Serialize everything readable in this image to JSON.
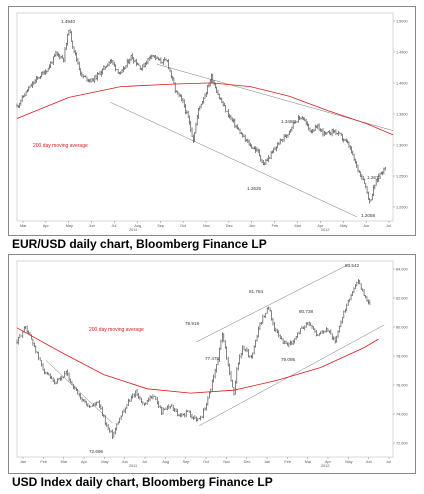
{
  "chart_data": [
    {
      "type": "line",
      "title": "EUR/USD daily chart, Bloomberg Finance LP",
      "series_price_style": "ohlc-bars",
      "moving_average_label": "200 day moving average",
      "x_tick_labels": [
        "Mar",
        "Apr",
        "May",
        "Jun",
        "Jul",
        "Aug",
        "Sep",
        "Oct",
        "Nov",
        "Dec",
        "Jan",
        "Feb",
        "Mar",
        "Apr",
        "May",
        "Jun",
        "Jul"
      ],
      "year_labels": [
        "2011",
        "2012"
      ],
      "y_tick_labels": [
        "1.5000",
        "1.4500",
        "1.4000",
        "1.3500",
        "1.3000",
        "1.2500",
        "1.2000"
      ],
      "ylim": [
        1.175,
        1.52
      ],
      "annotations": [
        "1.4940",
        "1.3486",
        "1.2625",
        "1.2670",
        "1.2058"
      ],
      "price_path": [
        [
          0,
          1.365
        ],
        [
          8,
          1.392
        ],
        [
          16,
          1.412
        ],
        [
          24,
          1.428
        ],
        [
          30,
          1.452
        ],
        [
          36,
          1.445
        ],
        [
          40,
          1.494
        ],
        [
          44,
          1.458
        ],
        [
          50,
          1.415
        ],
        [
          58,
          1.408
        ],
        [
          66,
          1.425
        ],
        [
          72,
          1.442
        ],
        [
          80,
          1.418
        ],
        [
          88,
          1.448
        ],
        [
          96,
          1.428
        ],
        [
          104,
          1.452
        ],
        [
          110,
          1.44
        ],
        [
          116,
          1.44
        ],
        [
          122,
          1.392
        ],
        [
          128,
          1.372
        ],
        [
          132,
          1.345
        ],
        [
          136,
          1.31
        ],
        [
          140,
          1.36
        ],
        [
          146,
          1.39
        ],
        [
          150,
          1.415
        ],
        [
          156,
          1.38
        ],
        [
          162,
          1.355
        ],
        [
          168,
          1.335
        ],
        [
          174,
          1.315
        ],
        [
          180,
          1.3
        ],
        [
          186,
          1.29
        ],
        [
          190,
          1.268
        ],
        [
          196,
          1.285
        ],
        [
          202,
          1.305
        ],
        [
          208,
          1.318
        ],
        [
          214,
          1.34
        ],
        [
          220,
          1.348
        ],
        [
          226,
          1.325
        ],
        [
          232,
          1.33
        ],
        [
          238,
          1.318
        ],
        [
          244,
          1.325
        ],
        [
          250,
          1.315
        ],
        [
          256,
          1.3
        ],
        [
          262,
          1.265
        ],
        [
          268,
          1.24
        ],
        [
          272,
          1.206
        ],
        [
          276,
          1.235
        ],
        [
          280,
          1.255
        ],
        [
          284,
          1.262
        ]
      ],
      "ma_path": [
        [
          0,
          1.345
        ],
        [
          40,
          1.38
        ],
        [
          80,
          1.398
        ],
        [
          120,
          1.402
        ],
        [
          150,
          1.404
        ],
        [
          180,
          1.398
        ],
        [
          210,
          1.382
        ],
        [
          240,
          1.358
        ],
        [
          270,
          1.336
        ],
        [
          290,
          1.318
        ]
      ],
      "trend_lines": [
        [
          [
            108,
            1.435
          ],
          [
            290,
            1.325
          ]
        ],
        [
          [
            72,
            1.372
          ],
          [
            262,
            1.182
          ]
        ]
      ]
    },
    {
      "type": "line",
      "title": "USD Index daily chart, Bloomberg Finance LP",
      "series_price_style": "ohlc-bars",
      "moving_average_label": "200 day moving average",
      "x_tick_labels": [
        "Jan",
        "Feb",
        "Mar",
        "Apr",
        "May",
        "Jun",
        "Jul",
        "Aug",
        "Sep",
        "Oct",
        "Nov",
        "Dec",
        "Jan",
        "Feb",
        "Mar",
        "Apr",
        "May",
        "Jun",
        "Jul"
      ],
      "year_labels": [
        "2011",
        "2012"
      ],
      "y_tick_labels": [
        "84.000",
        "82.000",
        "80.000",
        "78.000",
        "76.000",
        "74.000",
        "72.000"
      ],
      "ylim": [
        71.2,
        85.0
      ],
      "annotations": [
        "72.696",
        "79.919",
        "77.478",
        "81.784",
        "79.095",
        "80.738",
        "83.542"
      ],
      "price_path": [
        [
          0,
          79.3
        ],
        [
          6,
          80.4
        ],
        [
          12,
          79.0
        ],
        [
          18,
          77.4
        ],
        [
          26,
          76.3
        ],
        [
          34,
          77.1
        ],
        [
          42,
          75.6
        ],
        [
          50,
          74.7
        ],
        [
          56,
          75.0
        ],
        [
          62,
          73.4
        ],
        [
          66,
          72.7
        ],
        [
          70,
          73.8
        ],
        [
          76,
          74.9
        ],
        [
          82,
          75.8
        ],
        [
          88,
          74.8
        ],
        [
          94,
          75.6
        ],
        [
          100,
          74.4
        ],
        [
          106,
          74.9
        ],
        [
          112,
          74.0
        ],
        [
          118,
          74.4
        ],
        [
          124,
          73.8
        ],
        [
          128,
          74.1
        ],
        [
          132,
          75.3
        ],
        [
          138,
          77.6
        ],
        [
          142,
          79.919
        ],
        [
          146,
          77.6
        ],
        [
          150,
          75.5
        ],
        [
          152,
          77.478
        ],
        [
          156,
          78.9
        ],
        [
          162,
          78.2
        ],
        [
          168,
          80.6
        ],
        [
          174,
          81.784
        ],
        [
          178,
          80.2
        ],
        [
          184,
          79.3
        ],
        [
          190,
          79.095
        ],
        [
          196,
          80.2
        ],
        [
          202,
          80.738
        ],
        [
          208,
          79.7
        ],
        [
          214,
          80.3
        ],
        [
          220,
          79.3
        ],
        [
          226,
          81.3
        ],
        [
          232,
          82.9
        ],
        [
          236,
          83.542
        ],
        [
          240,
          82.6
        ],
        [
          244,
          82.0
        ]
      ],
      "ma_path": [
        [
          0,
          80.3
        ],
        [
          30,
          78.6
        ],
        [
          60,
          77.0
        ],
        [
          90,
          76.0
        ],
        [
          120,
          75.7
        ],
        [
          150,
          75.9
        ],
        [
          180,
          76.6
        ],
        [
          210,
          77.5
        ],
        [
          240,
          78.9
        ],
        [
          250,
          79.5
        ]
      ],
      "trend_lines": [
        [
          [
            20,
            78.0
          ],
          [
            66,
            73.6
          ]
        ],
        [
          [
            124,
            79.3
          ],
          [
            230,
            84.8
          ]
        ],
        [
          [
            126,
            73.4
          ],
          [
            254,
            80.5
          ]
        ]
      ]
    }
  ]
}
